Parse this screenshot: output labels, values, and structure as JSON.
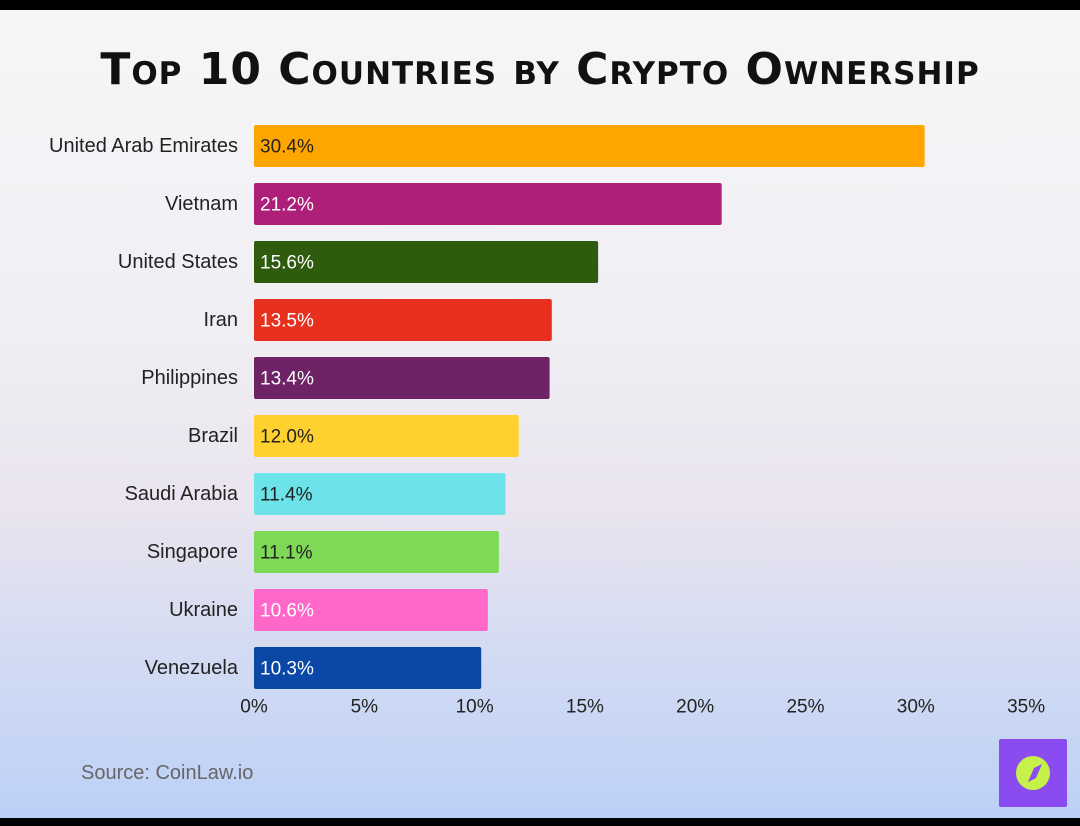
{
  "chart_data": {
    "type": "bar",
    "orientation": "horizontal",
    "title": "Top 10 Countries by Crypto Ownership",
    "categories": [
      "United Arab Emirates",
      "Vietnam",
      "United States",
      "Iran",
      "Philippines",
      "Brazil",
      "Saudi Arabia",
      "Singapore",
      "Ukraine",
      "Venezuela"
    ],
    "values": [
      30.4,
      21.2,
      15.6,
      13.5,
      13.4,
      12.0,
      11.4,
      11.1,
      10.6,
      10.3
    ],
    "data_labels": [
      "30.4%",
      "21.2%",
      "15.6%",
      "13.5%",
      "13.4%",
      "12.0%",
      "11.4%",
      "11.1%",
      "10.6%",
      "10.3%"
    ],
    "colors": [
      "#ffa500",
      "#ad1f79",
      "#2f5b0f",
      "#e7311e",
      "#6e2367",
      "#ffd12e",
      "#6be3e8",
      "#7ed957",
      "#ff68c8",
      "#0a47a6"
    ],
    "label_colors": [
      "#222222",
      "#ffffff",
      "#ffffff",
      "#ffffff",
      "#ffffff",
      "#222222",
      "#222222",
      "#222222",
      "#ffffff",
      "#ffffff"
    ],
    "xlim": [
      0,
      35
    ],
    "xticks": [
      0,
      5,
      10,
      15,
      20,
      25,
      30,
      35
    ],
    "xtick_labels": [
      "0%",
      "5%",
      "10%",
      "15%",
      "20%",
      "25%",
      "30%",
      "35%"
    ],
    "grid": false,
    "legend": "none"
  },
  "source": "Source: CoinLaw.io",
  "logo": {
    "icon": "compass-icon",
    "background": "#8a4cf0",
    "accent": "#c6f04a"
  }
}
